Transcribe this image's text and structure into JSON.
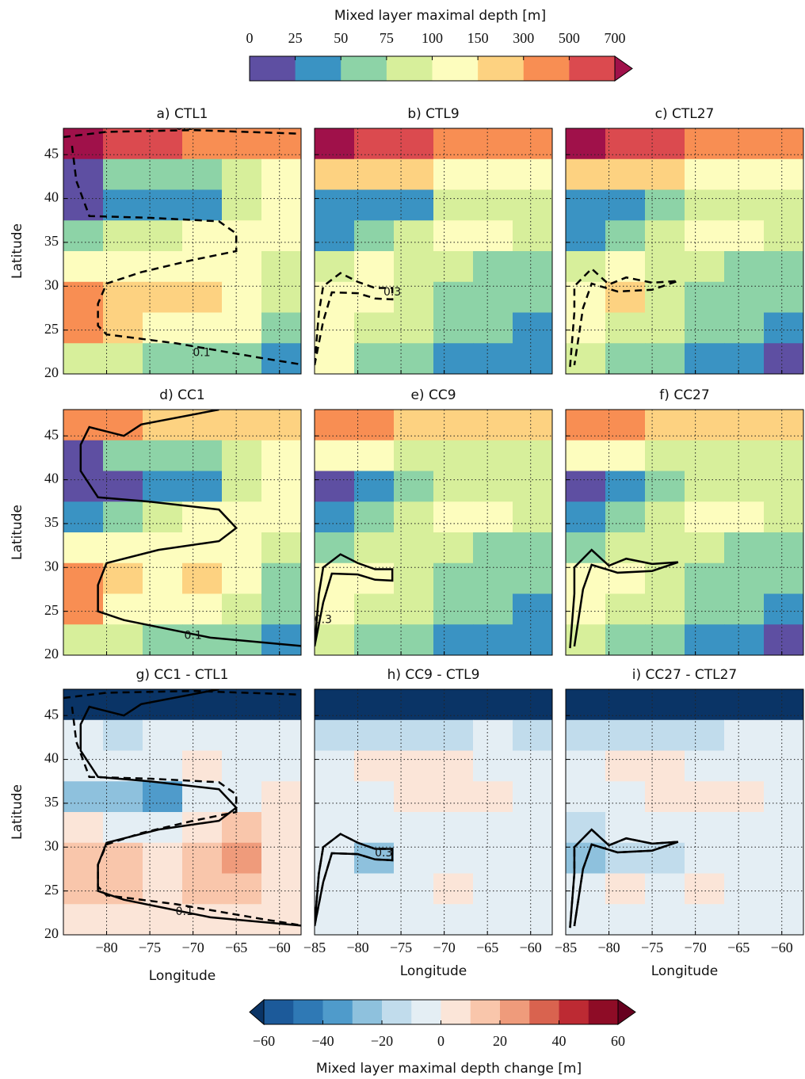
{
  "colorbars": {
    "depth": {
      "label": "Mixed layer maximal depth [m]",
      "bounds": [
        0,
        25,
        50,
        75,
        100,
        150,
        300,
        500,
        700
      ],
      "colors": [
        "#5e4fa2",
        "#3a93c3",
        "#8dd3a7",
        "#d7ef9b",
        "#fdfdbe",
        "#fdd281",
        "#f88e53",
        "#db4a4f"
      ],
      "extend_max_color": "#a0114a"
    },
    "change": {
      "label": "Mixed layer maximal depth change [m]",
      "bounds": [
        -60,
        -50,
        -40,
        -30,
        -20,
        -10,
        0,
        10,
        20,
        30,
        40,
        50,
        60
      ],
      "ticks": [
        {
          "value": -60,
          "label": "−60"
        },
        {
          "value": -40,
          "label": "−40"
        },
        {
          "value": -20,
          "label": "−20"
        },
        0,
        20,
        40,
        60
      ],
      "colors": [
        "#1c5a9a",
        "#2f79b5",
        "#4f9bcb",
        "#8ec1dd",
        "#c1dcec",
        "#e4eef4",
        "#fbe5d8",
        "#f9c6ab",
        "#ef9b7b",
        "#d9634f",
        "#bd2a33",
        "#8e0c26"
      ],
      "extend_min_color": "#0a3466",
      "extend_max_color": "#67001f"
    }
  },
  "chart_data": [
    {
      "type": "contour",
      "title": "a) CTL1",
      "ylabel": "Latitude",
      "colorbar": "depth",
      "contour_labels": [
        "0.1",
        "0.1"
      ],
      "xlim": [
        -85,
        -57.5
      ],
      "ylim": [
        20,
        48
      ],
      "xticks": [
        -80,
        -75,
        -70,
        -65,
        -60
      ],
      "yticks": [
        20,
        25,
        30,
        35,
        40,
        45
      ],
      "show_xtick_labels": false,
      "show_ytick_labels": true,
      "grid": true,
      "values": [
        [
          700,
          600,
          500,
          400,
          350,
          300
        ],
        [
          20,
          60,
          60,
          60,
          80,
          120
        ],
        [
          15,
          40,
          40,
          40,
          80,
          110
        ],
        [
          60,
          80,
          90,
          100,
          110,
          120
        ],
        [
          120,
          130,
          120,
          110,
          110,
          90
        ],
        [
          400,
          200,
          180,
          200,
          130,
          80
        ],
        [
          300,
          150,
          130,
          120,
          100,
          70
        ],
        [
          80,
          80,
          70,
          60,
          50,
          40
        ]
      ]
    },
    {
      "type": "contour",
      "title": "b) CTL9",
      "colorbar": "depth",
      "contour_labels": [
        "0.3"
      ],
      "xlim": [
        -85,
        -57.5
      ],
      "ylim": [
        20,
        48
      ],
      "xticks": [
        -85,
        -80,
        -75,
        -70,
        -65,
        -60
      ],
      "yticks": [
        20,
        25,
        30,
        35,
        40,
        45
      ],
      "show_xtick_labels": false,
      "show_ytick_labels": false,
      "grid": true,
      "values": [
        [
          700,
          600,
          500,
          450,
          400,
          350
        ],
        [
          200,
          150,
          150,
          130,
          110,
          100
        ],
        [
          30,
          40,
          40,
          90,
          90,
          80
        ],
        [
          40,
          60,
          90,
          110,
          100,
          80
        ],
        [
          80,
          100,
          90,
          80,
          70,
          60
        ],
        [
          130,
          100,
          80,
          70,
          60,
          60
        ],
        [
          120,
          90,
          80,
          60,
          50,
          40
        ],
        [
          100,
          60,
          50,
          40,
          30,
          30
        ]
      ]
    },
    {
      "type": "contour",
      "title": "c) CTL27",
      "colorbar": "depth",
      "contour_labels": [],
      "xlim": [
        -85,
        -57.5
      ],
      "ylim": [
        20,
        48
      ],
      "xticks": [
        -85,
        -80,
        -75,
        -70,
        -65,
        -60
      ],
      "yticks": [
        20,
        25,
        30,
        35,
        40,
        45
      ],
      "show_xtick_labels": false,
      "show_ytick_labels": false,
      "grid": true,
      "values": [
        [
          700,
          650,
          500,
          450,
          400,
          350
        ],
        [
          200,
          160,
          150,
          130,
          110,
          100
        ],
        [
          30,
          40,
          60,
          90,
          90,
          80
        ],
        [
          40,
          70,
          90,
          110,
          100,
          80
        ],
        [
          80,
          100,
          90,
          80,
          70,
          60
        ],
        [
          130,
          200,
          90,
          70,
          60,
          50
        ],
        [
          120,
          90,
          80,
          60,
          50,
          40
        ],
        [
          90,
          60,
          50,
          40,
          30,
          20
        ]
      ]
    },
    {
      "type": "contour",
      "title": "d) CC1",
      "ylabel": "Latitude",
      "colorbar": "depth",
      "contour_labels": [
        "0.1"
      ],
      "xlim": [
        -85,
        -57.5
      ],
      "ylim": [
        20,
        48
      ],
      "xticks": [
        -80,
        -75,
        -70,
        -65,
        -60
      ],
      "yticks": [
        20,
        25,
        30,
        35,
        40,
        45
      ],
      "show_xtick_labels": false,
      "show_ytick_labels": true,
      "grid": true,
      "values": [
        [
          400,
          300,
          250,
          200,
          150,
          150
        ],
        [
          20,
          50,
          60,
          60,
          80,
          110
        ],
        [
          10,
          15,
          40,
          40,
          80,
          110
        ],
        [
          40,
          60,
          80,
          100,
          110,
          120
        ],
        [
          110,
          130,
          120,
          110,
          100,
          90
        ],
        [
          350,
          150,
          130,
          180,
          100,
          70
        ],
        [
          300,
          140,
          120,
          110,
          90,
          70
        ],
        [
          80,
          80,
          70,
          60,
          50,
          40
        ]
      ]
    },
    {
      "type": "contour",
      "title": "e) CC9",
      "colorbar": "depth",
      "contour_labels": [
        "0.3"
      ],
      "xlim": [
        -85,
        -57.5
      ],
      "ylim": [
        20,
        48
      ],
      "xticks": [
        -85,
        -80,
        -75,
        -70,
        -65,
        -60
      ],
      "yticks": [
        20,
        25,
        30,
        35,
        40,
        45
      ],
      "show_xtick_labels": false,
      "show_ytick_labels": false,
      "grid": true,
      "values": [
        [
          350,
          300,
          250,
          200,
          150,
          150
        ],
        [
          110,
          100,
          80,
          90,
          90,
          80
        ],
        [
          20,
          40,
          60,
          90,
          90,
          80
        ],
        [
          40,
          60,
          90,
          110,
          100,
          80
        ],
        [
          60,
          90,
          90,
          80,
          70,
          60
        ],
        [
          110,
          100,
          80,
          70,
          60,
          60
        ],
        [
          110,
          90,
          80,
          60,
          50,
          40
        ],
        [
          90,
          60,
          50,
          40,
          30,
          30
        ]
      ]
    },
    {
      "type": "contour",
      "title": "f) CC27",
      "colorbar": "depth",
      "contour_labels": [],
      "xlim": [
        -85,
        -57.5
      ],
      "ylim": [
        20,
        48
      ],
      "xticks": [
        -85,
        -80,
        -75,
        -70,
        -65,
        -60
      ],
      "yticks": [
        20,
        25,
        30,
        35,
        40,
        45
      ],
      "show_xtick_labels": false,
      "show_ytick_labels": false,
      "grid": true,
      "values": [
        [
          350,
          300,
          250,
          200,
          150,
          150
        ],
        [
          110,
          100,
          90,
          90,
          90,
          80
        ],
        [
          20,
          40,
          60,
          90,
          90,
          80
        ],
        [
          40,
          60,
          90,
          110,
          100,
          80
        ],
        [
          60,
          90,
          90,
          80,
          70,
          60
        ],
        [
          110,
          120,
          90,
          70,
          60,
          50
        ],
        [
          110,
          90,
          80,
          60,
          50,
          40
        ],
        [
          90,
          60,
          50,
          40,
          30,
          20
        ]
      ]
    },
    {
      "type": "contour",
      "title": "g) CC1 - CTL1",
      "ylabel": "Latitude",
      "xlabel": "Longitude",
      "colorbar": "change",
      "contour_labels": [
        "0.1"
      ],
      "xlim": [
        -85,
        -57.5
      ],
      "ylim": [
        20,
        48
      ],
      "xticks": [
        {
          "value": -80,
          "label": "−80"
        },
        {
          "value": -75,
          "label": "−75"
        },
        {
          "value": -70,
          "label": "−70"
        },
        {
          "value": -65,
          "label": "−65"
        },
        {
          "value": -60,
          "label": "−60"
        }
      ],
      "yticks": [
        20,
        25,
        30,
        35,
        40,
        45
      ],
      "show_xtick_labels": true,
      "show_ytick_labels": true,
      "grid": true,
      "values": [
        [
          -70,
          -70,
          -70,
          -70,
          -70,
          -70
        ],
        [
          -10,
          -15,
          -10,
          -5,
          -5,
          -5
        ],
        [
          -10,
          -5,
          -5,
          5,
          -5,
          -5
        ],
        [
          -25,
          -30,
          -35,
          -10,
          -5,
          0
        ],
        [
          0,
          -10,
          -5,
          5,
          10,
          5
        ],
        [
          10,
          15,
          0,
          10,
          25,
          5
        ],
        [
          10,
          10,
          5,
          15,
          10,
          0
        ],
        [
          0,
          0,
          0,
          0,
          0,
          0
        ]
      ]
    },
    {
      "type": "contour",
      "title": "h) CC9 - CTL9",
      "xlabel": "Longitude",
      "colorbar": "change",
      "contour_labels": [
        "0.3"
      ],
      "xlim": [
        -85,
        -57.5
      ],
      "ylim": [
        20,
        48
      ],
      "xticks": [
        {
          "value": -85,
          "label": "−85"
        },
        {
          "value": -80,
          "label": "−80"
        },
        {
          "value": -75,
          "label": "−75"
        },
        {
          "value": -70,
          "label": "−70"
        },
        {
          "value": -65,
          "label": "−65"
        },
        {
          "value": -60,
          "label": "−60"
        }
      ],
      "yticks": [
        20,
        25,
        30,
        35,
        40,
        45
      ],
      "show_xtick_labels": true,
      "show_ytick_labels": false,
      "grid": true,
      "values": [
        [
          -70,
          -70,
          -70,
          -70,
          -70,
          -70
        ],
        [
          -20,
          -20,
          -15,
          -15,
          -10,
          -15
        ],
        [
          -5,
          0,
          0,
          0,
          -5,
          -5
        ],
        [
          -5,
          -5,
          5,
          0,
          0,
          -5
        ],
        [
          -10,
          -10,
          -5,
          -5,
          -5,
          -5
        ],
        [
          -10,
          -25,
          -10,
          -5,
          -5,
          -5
        ],
        [
          -5,
          -5,
          -5,
          0,
          -5,
          -5
        ],
        [
          -5,
          -5,
          -5,
          -5,
          -5,
          -5
        ]
      ]
    },
    {
      "type": "contour",
      "title": "i) CC27 - CTL27",
      "xlabel": "Longitude",
      "colorbar": "change",
      "contour_labels": [],
      "xlim": [
        -85,
        -57.5
      ],
      "ylim": [
        20,
        48
      ],
      "xticks": [
        {
          "value": -85,
          "label": "−85"
        },
        {
          "value": -80,
          "label": "−80"
        },
        {
          "value": -75,
          "label": "−75"
        },
        {
          "value": -70,
          "label": "−70"
        },
        {
          "value": -65,
          "label": "−65"
        },
        {
          "value": -60,
          "label": "−60"
        }
      ],
      "yticks": [
        20,
        25,
        30,
        35,
        40,
        45
      ],
      "show_xtick_labels": true,
      "show_ytick_labels": false,
      "grid": true,
      "values": [
        [
          -70,
          -70,
          -70,
          -70,
          -70,
          -70
        ],
        [
          -20,
          -15,
          -15,
          -15,
          -10,
          -10
        ],
        [
          -5,
          0,
          0,
          -5,
          -5,
          -5
        ],
        [
          -5,
          -5,
          0,
          5,
          5,
          -5
        ],
        [
          -15,
          -10,
          -5,
          -5,
          -5,
          -5
        ],
        [
          -25,
          -20,
          -15,
          -10,
          -5,
          -5
        ],
        [
          -5,
          5,
          -5,
          0,
          -5,
          -5
        ],
        [
          -5,
          -5,
          -5,
          -5,
          -5,
          -5
        ]
      ]
    }
  ]
}
